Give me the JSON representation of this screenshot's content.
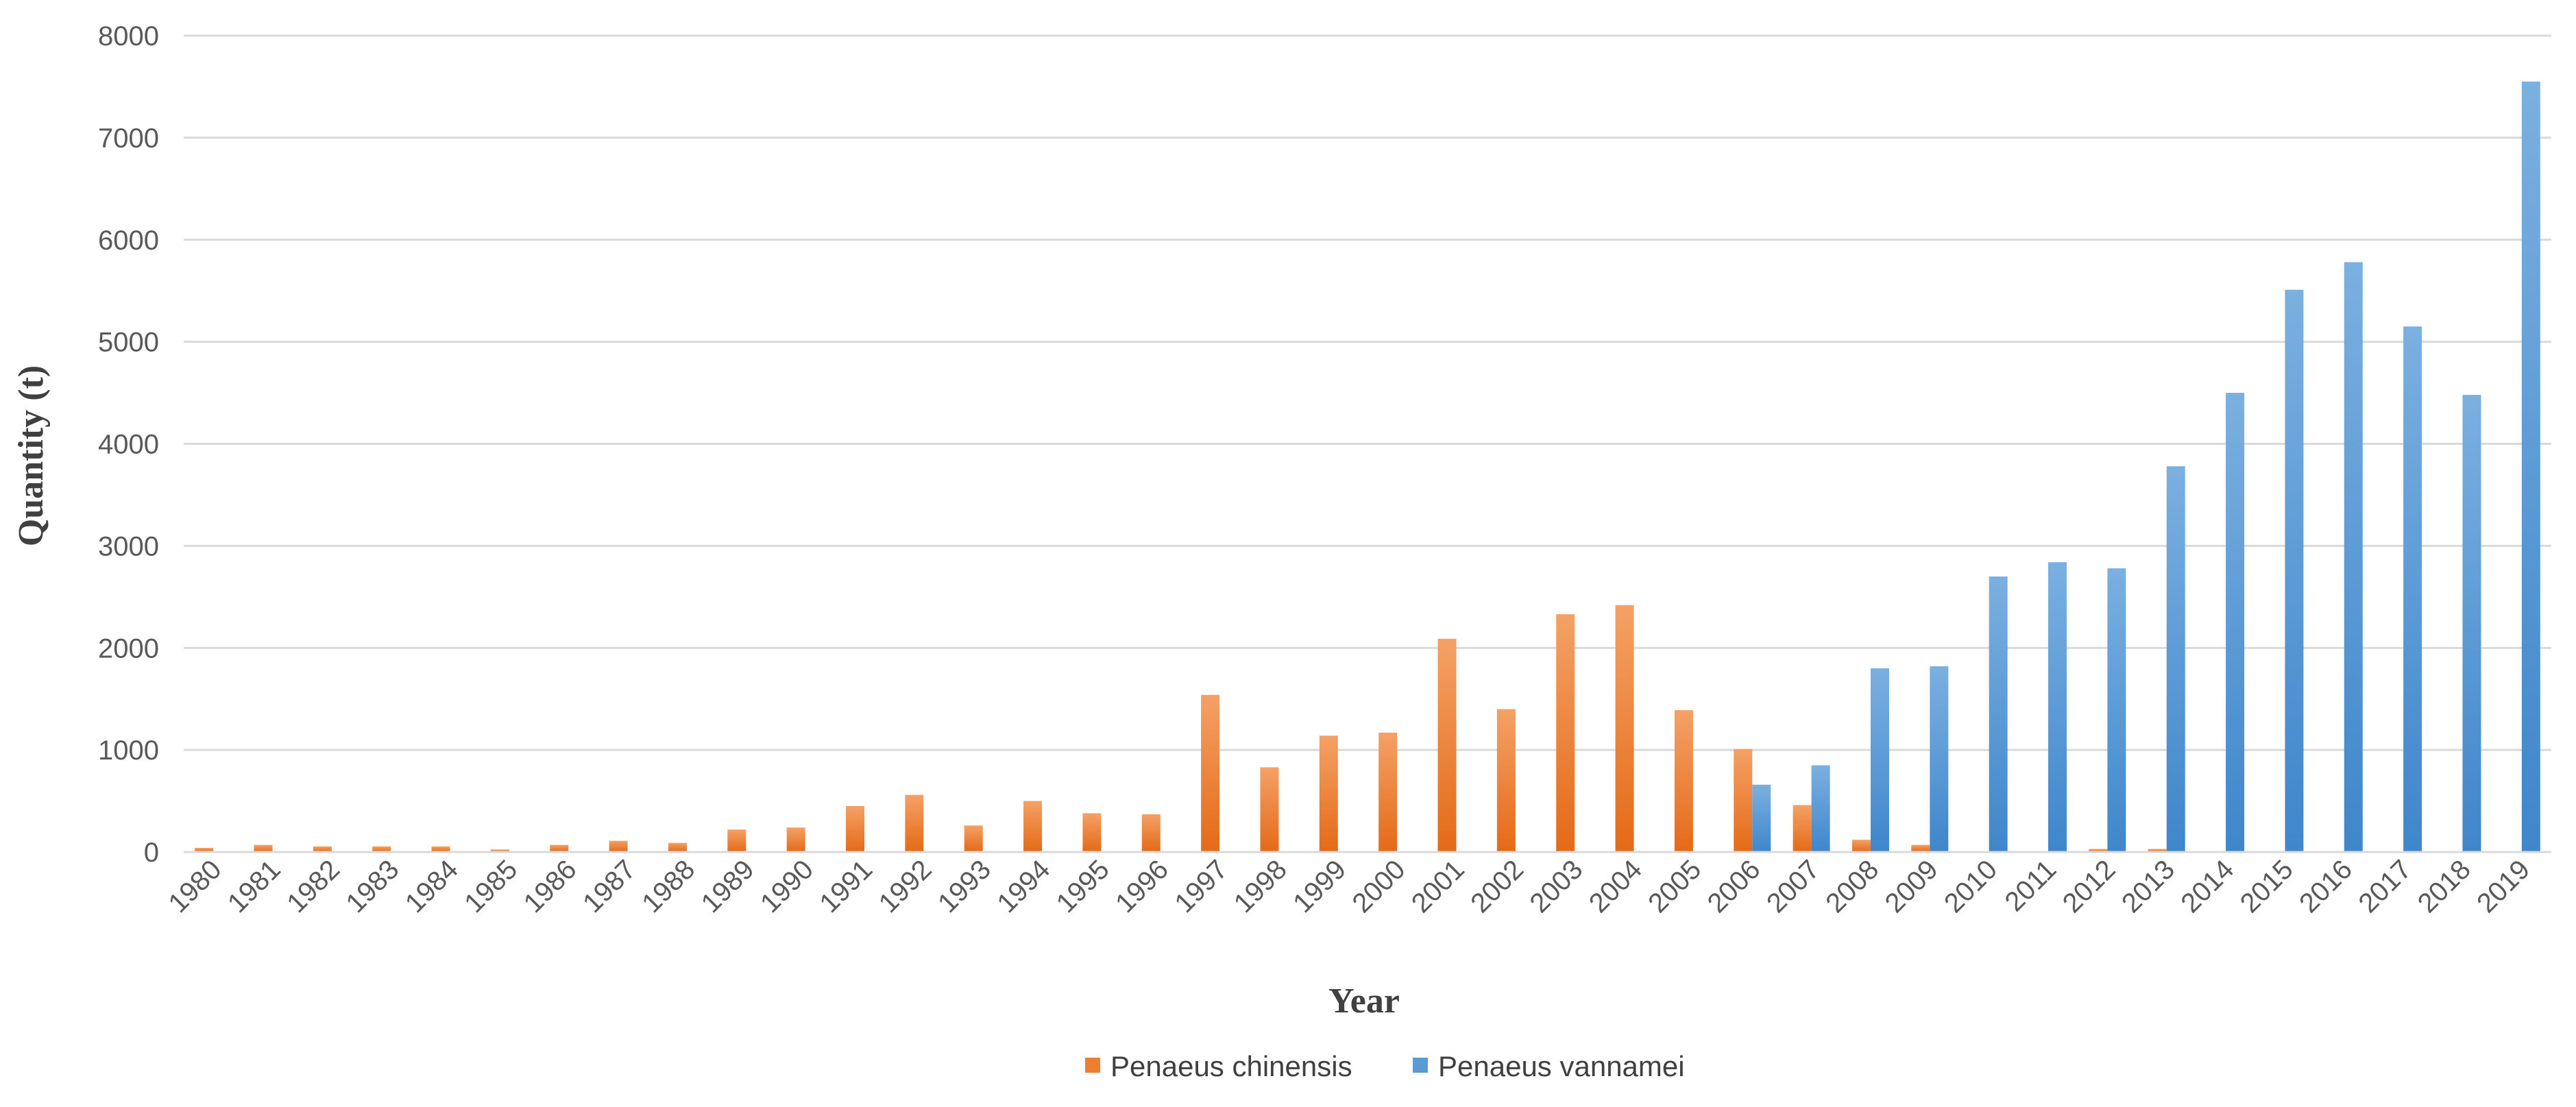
{
  "chart_data": {
    "type": "bar",
    "title": "",
    "xlabel": "Year",
    "ylabel": "Quantity (t)",
    "ylim": [
      0,
      8000
    ],
    "yticks": [
      0,
      1000,
      2000,
      3000,
      4000,
      5000,
      6000,
      7000,
      8000
    ],
    "grid": "horizontal",
    "legend_position": "bottom",
    "categories": [
      "1980",
      "1981",
      "1982",
      "1983",
      "1984",
      "1985",
      "1986",
      "1987",
      "1988",
      "1989",
      "1990",
      "1991",
      "1992",
      "1993",
      "1994",
      "1995",
      "1996",
      "1997",
      "1998",
      "1999",
      "2000",
      "2001",
      "2002",
      "2003",
      "2004",
      "2005",
      "2006",
      "2007",
      "2008",
      "2009",
      "2010",
      "2011",
      "2012",
      "2013",
      "2014",
      "2015",
      "2016",
      "2017",
      "2018",
      "2019"
    ],
    "series": [
      {
        "name": "Penaeus chinensis",
        "color": "#ED7D31",
        "values": [
          40,
          70,
          55,
          55,
          55,
          25,
          70,
          110,
          90,
          220,
          240,
          450,
          560,
          260,
          500,
          380,
          370,
          1540,
          830,
          1140,
          1170,
          2090,
          1400,
          2330,
          2420,
          1390,
          1010,
          460,
          120,
          70,
          0,
          0,
          30,
          30,
          0,
          0,
          0,
          0,
          0,
          0
        ]
      },
      {
        "name": "Penaeus vannamei",
        "color": "#5B9BD5",
        "values": [
          0,
          0,
          0,
          0,
          0,
          0,
          0,
          0,
          0,
          0,
          0,
          0,
          0,
          0,
          0,
          0,
          0,
          0,
          0,
          0,
          0,
          0,
          0,
          0,
          0,
          0,
          660,
          850,
          1800,
          1820,
          2700,
          2840,
          2780,
          3780,
          4500,
          5510,
          5780,
          5150,
          4480,
          7550
        ]
      }
    ]
  }
}
